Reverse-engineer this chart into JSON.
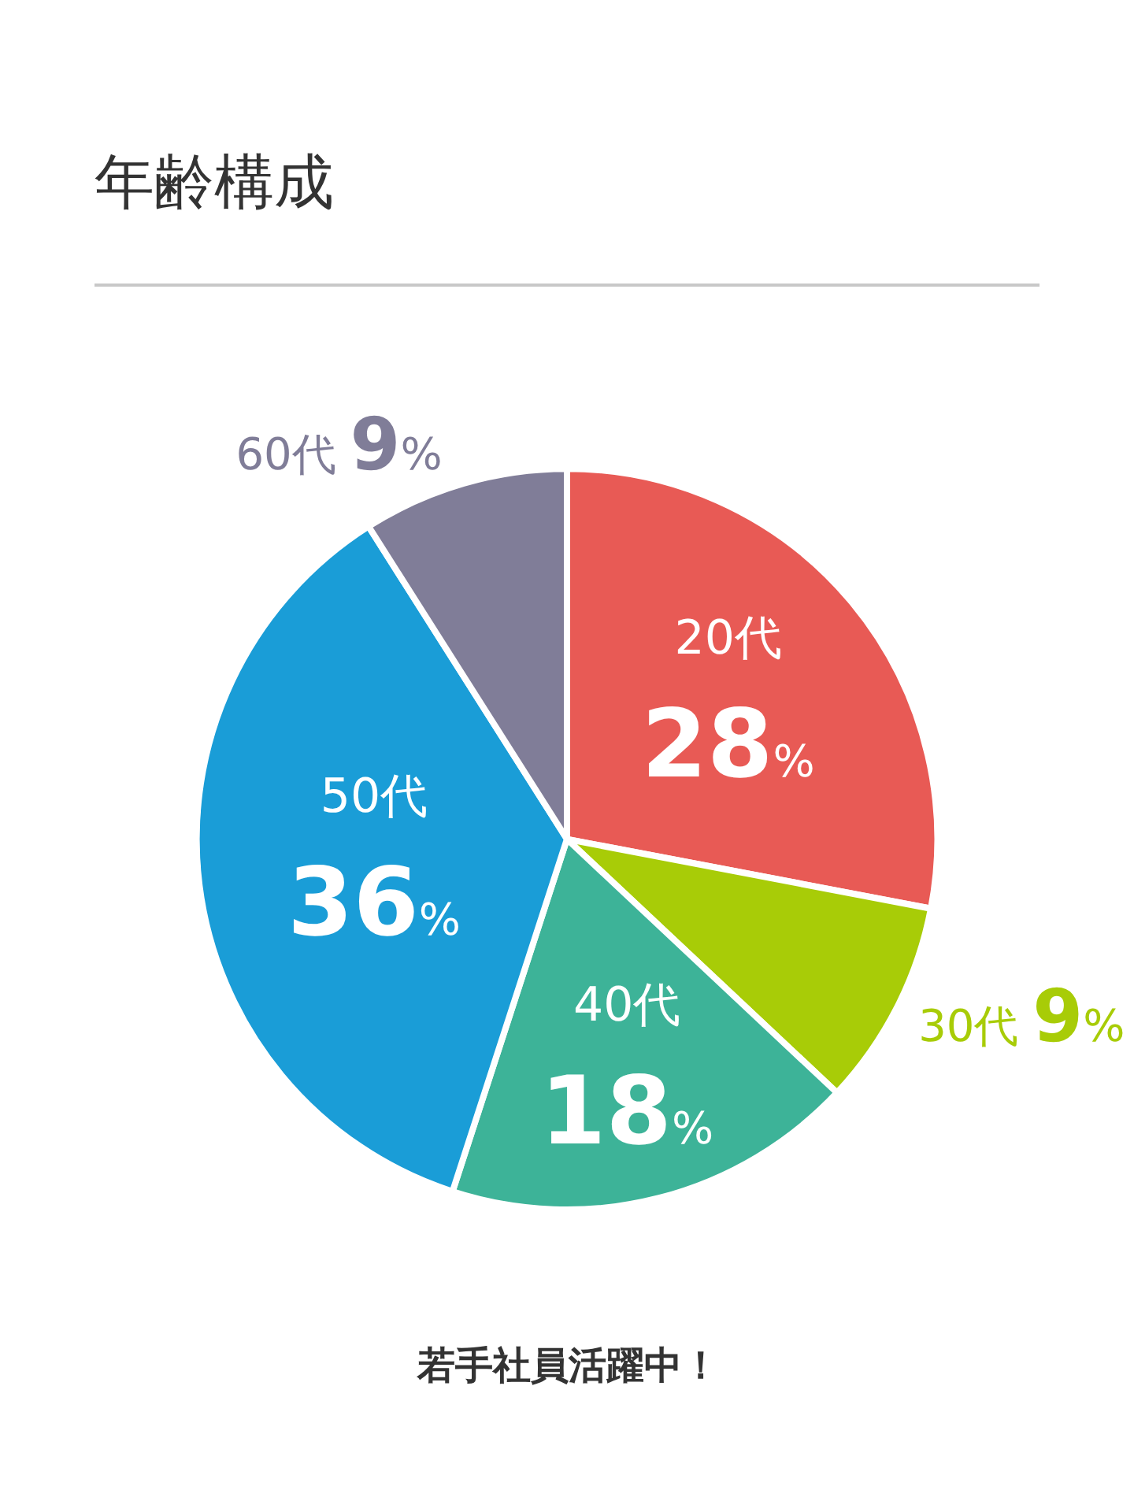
{
  "chart_data": {
    "type": "pie",
    "title": "年齢構成",
    "categories": [
      "20代",
      "30代",
      "40代",
      "50代",
      "60代"
    ],
    "values": [
      28,
      9,
      18,
      36,
      9
    ],
    "colors": [
      "#e85a55",
      "#a8cc07",
      "#3db398",
      "#1a9dd7",
      "#807d98"
    ],
    "value_labels": [
      "28%",
      "9%",
      "18%",
      "36%",
      "9%"
    ],
    "legend": false,
    "annotations": [
      "若手社員活躍中！"
    ]
  }
}
